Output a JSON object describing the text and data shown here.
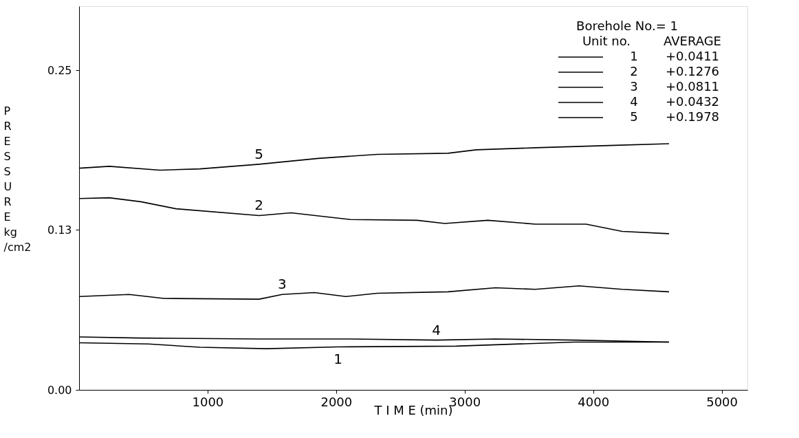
{
  "chart_data": {
    "type": "line",
    "xlabel": "T I M E  (min)",
    "ylabel": "PRESSURE kg /cm2",
    "legend_title": "Borehole No.= 1",
    "xlim": [
      0,
      5200
    ],
    "xticks": [
      1000,
      2000,
      3000,
      4000,
      5000
    ],
    "ylim": [
      0,
      0.3
    ],
    "yticks": [
      {
        "value": 0,
        "label": "0.00"
      },
      {
        "value": 0.125,
        "label": "0.13"
      },
      0.25
    ],
    "grid": false,
    "legend": "top right",
    "line_style": "solid",
    "marker": "none",
    "annotations": [
      "Unit no.",
      "AVERAGE",
      "+0.0411",
      "+0.1276",
      "+0.0811",
      "+0.0432",
      "+0.1978"
    ],
    "series": [
      {
        "name": "1",
        "color": "#000000",
        "x": [
          0,
          540,
          940,
          1460,
          2015,
          2935,
          3855,
          4590
        ],
        "values": [
          0.0368,
          0.0359,
          0.0333,
          0.0322,
          0.0336,
          0.0342,
          0.0374,
          0.0374
        ]
      },
      {
        "name": "2",
        "color": "#000000",
        "x": [
          0,
          235,
          480,
          755,
          1400,
          1650,
          2110,
          2630,
          2845,
          3180,
          3550,
          3945,
          4225,
          4590
        ],
        "values": [
          0.1496,
          0.1502,
          0.1471,
          0.1416,
          0.1363,
          0.1384,
          0.1332,
          0.1326,
          0.1301,
          0.1326,
          0.1296,
          0.1296,
          0.1239,
          0.1221
        ]
      },
      {
        "name": "3",
        "color": "#000000",
        "x": [
          0,
          390,
          660,
          1400,
          1580,
          1830,
          2075,
          2320,
          2870,
          3240,
          3550,
          3890,
          4225,
          4590
        ],
        "values": [
          0.073,
          0.0746,
          0.0715,
          0.0709,
          0.0746,
          0.0761,
          0.073,
          0.0755,
          0.0767,
          0.0798,
          0.0786,
          0.0813,
          0.0786,
          0.0767
        ]
      },
      {
        "name": "4",
        "color": "#000000",
        "x": [
          0,
          480,
          1400,
          2110,
          2780,
          3240,
          3855,
          4590
        ],
        "values": [
          0.0414,
          0.0405,
          0.0398,
          0.0398,
          0.0389,
          0.0398,
          0.0389,
          0.0374
        ]
      },
      {
        "name": "5",
        "color": "#000000",
        "x": [
          0,
          235,
          630,
          940,
          1400,
          1860,
          2320,
          2870,
          3090,
          3550,
          4165,
          4590
        ],
        "values": [
          0.1733,
          0.1748,
          0.1718,
          0.1728,
          0.1764,
          0.181,
          0.1841,
          0.185,
          0.1877,
          0.1893,
          0.1912,
          0.1925
        ]
      }
    ]
  }
}
